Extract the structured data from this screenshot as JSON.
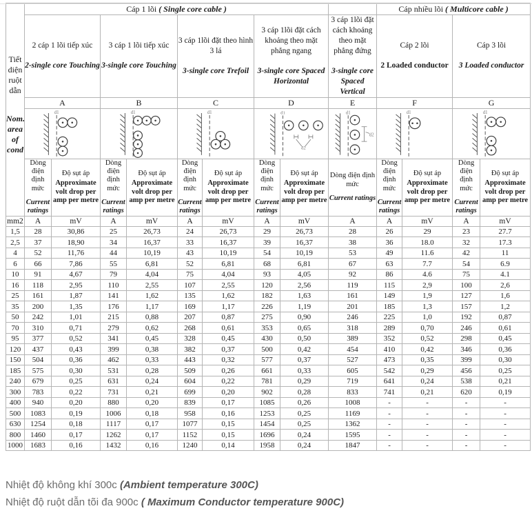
{
  "table": {
    "top_headers": {
      "single_core_vi": "Cáp 1 lõi ",
      "single_core_en": "( Single core cable )",
      "multicore_vi": "Cáp nhiều lõi ",
      "multicore_en": "( Multicore cable )"
    },
    "left_header": {
      "vi": "Tiết diện ruột dẫn",
      "en": "Nom. area of cond",
      "unit": "mm2"
    },
    "columns": [
      {
        "letter": "A",
        "vi": "2 cáp 1 lõi tiếp xúc",
        "en": "2-single core Touching",
        "en_italic": true,
        "has_volt_drop": true
      },
      {
        "letter": "B",
        "vi": "3 cáp 1 lõi tiếp xúc",
        "en": "3-single core Touching",
        "en_italic": true,
        "has_volt_drop": true
      },
      {
        "letter": "C",
        "vi": "3 cáp 1lõi đặt theo hình 3 lá",
        "en": "3-single core Trefoil",
        "en_italic": true,
        "has_volt_drop": true
      },
      {
        "letter": "D",
        "vi": "3 cáp 1lõi đặt cách khoảng theo mặt phẳng ngang",
        "en": "3-single core Spaced Horizontal",
        "en_italic": true,
        "has_volt_drop": true
      },
      {
        "letter": "E",
        "vi": "3 cáp 1lõi đặt cách khoảng theo mặt phẳng đứng",
        "en": "3-single core Spaced Vertical",
        "en_italic": true,
        "has_volt_drop": false
      },
      {
        "letter": "F",
        "vi": "Cáp 2 lõi",
        "en": "2 Loaded conductor",
        "en_italic": false,
        "has_volt_drop": true
      },
      {
        "letter": "G",
        "vi": "Cáp 3 lõi",
        "en": "3 Loaded conductor",
        "en_italic": true,
        "has_volt_drop": true
      }
    ],
    "ratings_header": {
      "current_vi": "Dòng điện định mức",
      "current_en": "Current ratings",
      "volt_drop_vi": "Độ sụt áp",
      "volt_drop_en": "Approximate volt drop per amp per metre"
    },
    "units": {
      "area": "mm2",
      "current": "A",
      "volt_drop": "mV"
    },
    "diagram_labels": {
      "d1": "d1",
      "d2": "d2"
    },
    "rows": [
      [
        "1,5",
        "28",
        "30,86",
        "25",
        "26,73",
        "24",
        "26,73",
        "29",
        "26,73",
        "28",
        "26",
        "29",
        "23",
        "27.7"
      ],
      [
        "2,5",
        "37",
        "18,90",
        "34",
        "16,37",
        "33",
        "16,37",
        "39",
        "16,37",
        "38",
        "36",
        "18.0",
        "32",
        "17.3"
      ],
      [
        "4",
        "52",
        "11,76",
        "44",
        "10,19",
        "43",
        "10,19",
        "54",
        "10,19",
        "53",
        "49",
        "11.6",
        "42",
        "11"
      ],
      [
        "6",
        "66",
        "7,86",
        "55",
        "6,81",
        "52",
        "6,81",
        "68",
        "6,81",
        "67",
        "63",
        "7.7",
        "54",
        "6.9"
      ],
      [
        "10",
        "91",
        "4,67",
        "79",
        "4,04",
        "75",
        "4,04",
        "93",
        "4,05",
        "92",
        "86",
        "4.6",
        "75",
        "4.1"
      ],
      [
        "16",
        "118",
        "2,95",
        "110",
        "2,55",
        "107",
        "2,55",
        "120",
        "2,56",
        "119",
        "115",
        "2,9",
        "100",
        "2,6"
      ],
      [
        "25",
        "161",
        "1,87",
        "141",
        "1,62",
        "135",
        "1,62",
        "182",
        "1,63",
        "161",
        "149",
        "1,9",
        "127",
        "1,6"
      ],
      [
        "35",
        "200",
        "1,35",
        "176",
        "1,17",
        "169",
        "1,17",
        "226",
        "1,19",
        "201",
        "185",
        "1,3",
        "157",
        "1,2"
      ],
      [
        "50",
        "242",
        "1,01",
        "215",
        "0,88",
        "207",
        "0,87",
        "275",
        "0,90",
        "246",
        "225",
        "1,0",
        "192",
        "0,87"
      ],
      [
        "70",
        "310",
        "0,71",
        "279",
        "0,62",
        "268",
        "0,61",
        "353",
        "0,65",
        "318",
        "289",
        "0,70",
        "246",
        "0,61"
      ],
      [
        "95",
        "377",
        "0,52",
        "341",
        "0,45",
        "328",
        "0,45",
        "430",
        "0,50",
        "389",
        "352",
        "0,52",
        "298",
        "0,45"
      ],
      [
        "120",
        "437",
        "0,43",
        "399",
        "0,38",
        "382",
        "0,37",
        "500",
        "0,42",
        "454",
        "410",
        "0,42",
        "346",
        "0,36"
      ],
      [
        "150",
        "504",
        "0,36",
        "462",
        "0,33",
        "443",
        "0,32",
        "577",
        "0,37",
        "527",
        "473",
        "0,35",
        "399",
        "0,30"
      ],
      [
        "185",
        "575",
        "0,30",
        "531",
        "0,28",
        "509",
        "0,26",
        "661",
        "0,33",
        "605",
        "542",
        "0,29",
        "456",
        "0,25"
      ],
      [
        "240",
        "679",
        "0,25",
        "631",
        "0,24",
        "604",
        "0,22",
        "781",
        "0,29",
        "719",
        "641",
        "0,24",
        "538",
        "0,21"
      ],
      [
        "300",
        "783",
        "0,22",
        "731",
        "0,21",
        "699",
        "0,20",
        "902",
        "0,28",
        "833",
        "741",
        "0,21",
        "620",
        "0,19"
      ],
      [
        "400",
        "940",
        "0,20",
        "880",
        "0,20",
        "839",
        "0,17",
        "1085",
        "0,26",
        "1008",
        "-",
        "-",
        "-",
        "-"
      ],
      [
        "500",
        "1083",
        "0,19",
        "1006",
        "0,18",
        "958",
        "0,16",
        "1253",
        "0,25",
        "1169",
        "-",
        "-",
        "-",
        "-"
      ],
      [
        "630",
        "1254",
        "0,18",
        "1117",
        "0,17",
        "1077",
        "0,15",
        "1454",
        "0,25",
        "1362",
        "-",
        "-",
        "-",
        "-"
      ],
      [
        "800",
        "1460",
        "0,17",
        "1262",
        "0,17",
        "1152",
        "0,15",
        "1696",
        "0,24",
        "1595",
        "-",
        "-",
        "-",
        "-"
      ],
      [
        "1000",
        "1683",
        "0,16",
        "1432",
        "0,16",
        "1240",
        "0,14",
        "1958",
        "0,24",
        "1847",
        "-",
        "-",
        "-",
        "-"
      ]
    ]
  },
  "footer": {
    "line1_vi": "Nhiệt độ không khí 300c ",
    "line1_en": "(Ambient temperature 300C)",
    "line2_vi": "Nhiệt độ ruột dẫn tõi đa 900c ",
    "line2_en": "( Maximum Conductor temperature 900C)"
  }
}
